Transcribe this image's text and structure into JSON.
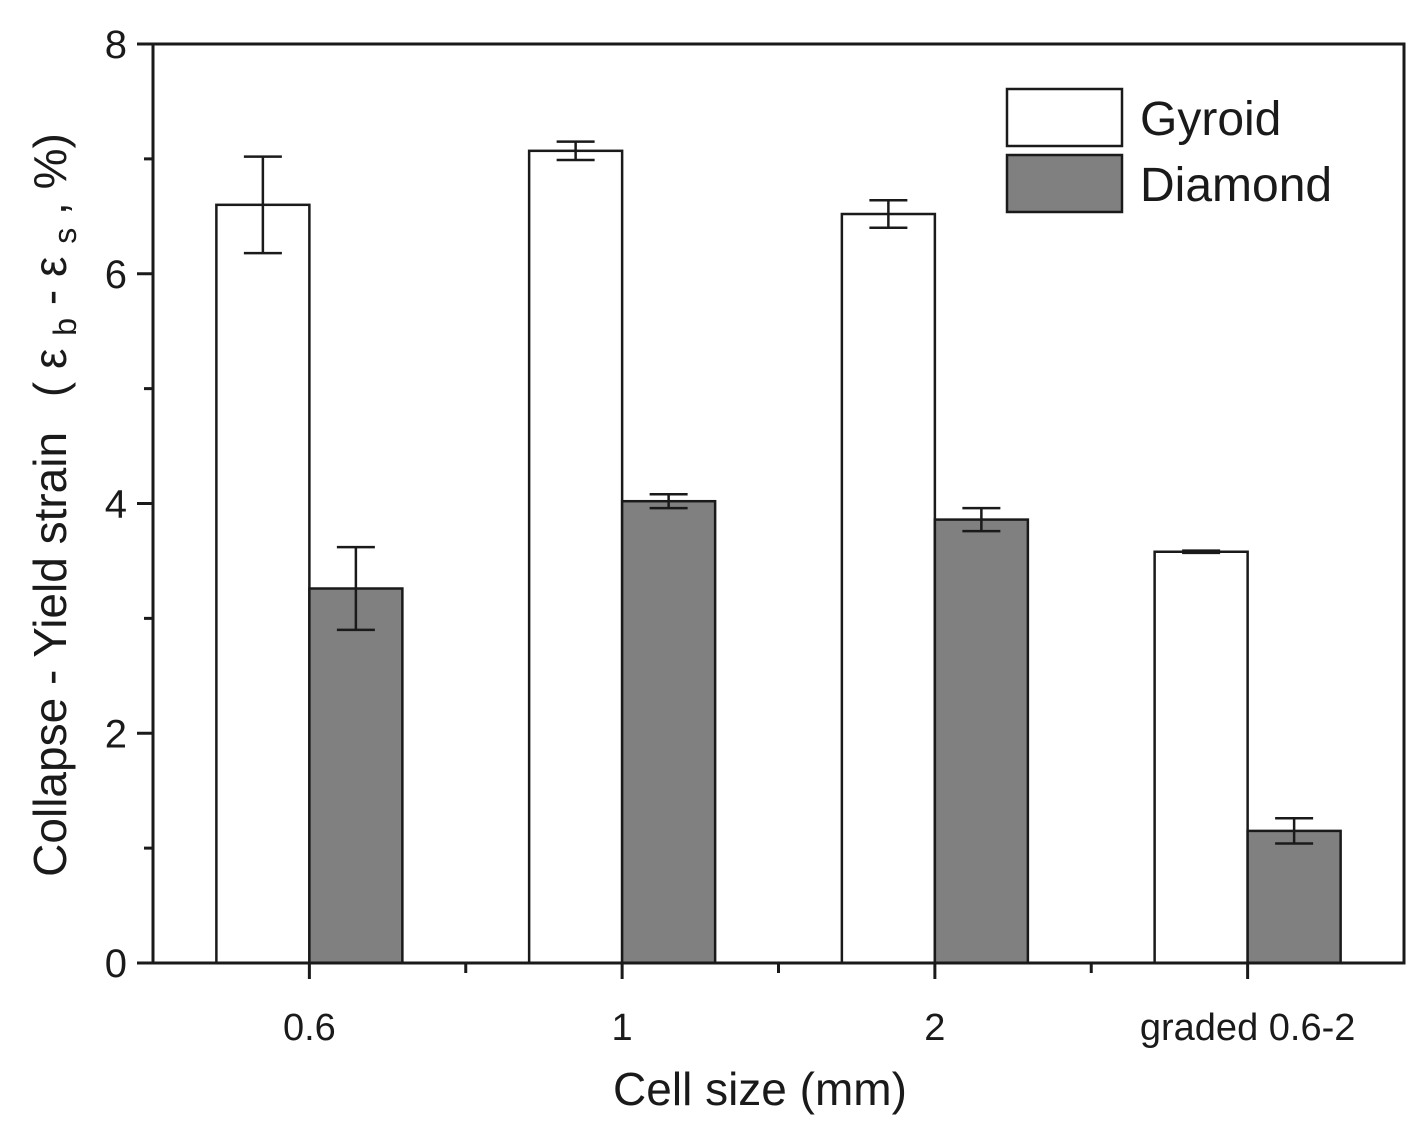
{
  "chart_data": {
    "type": "bar",
    "title": "",
    "xlabel": "Cell size (mm)",
    "ylabel": {
      "main": "Collapse - Yield strain",
      "open": "(",
      "eps_b": "ε",
      "sub_b": "b",
      "dash": " - ",
      "eps_s": "ε",
      "sub_s": "s",
      "tail": ", %)"
    },
    "categories": [
      "0.6",
      "1",
      "2",
      "graded 0.6-2"
    ],
    "ylim": [
      0,
      8
    ],
    "yticks": [
      "0",
      "2",
      "4",
      "6",
      "8"
    ],
    "grid": false,
    "legend_position": "top-right",
    "series": [
      {
        "name": "Gyroid",
        "color": "#ffffff",
        "values": [
          6.6,
          7.07,
          6.52,
          3.58
        ],
        "errors": [
          0.42,
          0.08,
          0.12,
          0.01
        ]
      },
      {
        "name": "Diamond",
        "color": "#808080",
        "values": [
          3.26,
          4.02,
          3.86,
          1.15
        ],
        "errors": [
          0.36,
          0.06,
          0.1,
          0.11
        ]
      }
    ]
  }
}
